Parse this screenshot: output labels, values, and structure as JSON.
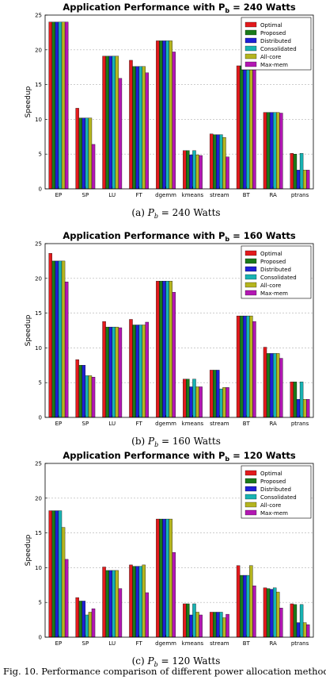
{
  "chart_data": [
    {
      "type": "bar",
      "title": "Application Performance with P",
      "title_subscript": "b",
      "title_suffix": " = 240 Watts",
      "ylabel": "Speedup",
      "xlabel": "",
      "ylim": [
        0,
        25
      ],
      "yticks": [
        "0",
        "5",
        "10",
        "15",
        "20",
        "25"
      ],
      "grid": true,
      "legend_position": "top-right",
      "categories": [
        "EP",
        "SP",
        "LU",
        "FT",
        "dgemm",
        "kmeans",
        "stream",
        "BT",
        "RA",
        "ptrans"
      ],
      "series": [
        {
          "name": "Optimal",
          "color": "#e31a1c",
          "values": [
            24.0,
            11.6,
            19.1,
            18.5,
            21.3,
            5.5,
            7.9,
            17.7,
            11.0,
            5.1
          ]
        },
        {
          "name": "Proposed",
          "color": "#1a7a1a",
          "values": [
            24.0,
            10.2,
            19.1,
            17.6,
            21.3,
            5.5,
            7.8,
            17.7,
            11.0,
            5.0
          ]
        },
        {
          "name": "Distributed",
          "color": "#1f1fd6",
          "values": [
            24.0,
            10.2,
            19.1,
            17.6,
            21.3,
            4.9,
            7.8,
            17.7,
            11.0,
            2.7
          ]
        },
        {
          "name": "Consolidated",
          "color": "#17b3b3",
          "values": [
            24.0,
            10.2,
            19.1,
            17.6,
            21.3,
            5.5,
            7.8,
            17.7,
            11.0,
            5.1
          ]
        },
        {
          "name": "All-core",
          "color": "#b5b51f",
          "values": [
            24.0,
            10.2,
            19.1,
            17.6,
            21.3,
            4.9,
            7.4,
            17.7,
            11.0,
            2.7
          ]
        },
        {
          "name": "Max-mem",
          "color": "#b317b3",
          "values": [
            24.0,
            6.4,
            15.9,
            16.7,
            19.7,
            4.8,
            4.6,
            17.5,
            10.9,
            2.7
          ]
        }
      ],
      "caption_prefix": "(a)",
      "caption_var": "P",
      "caption_sub": "b",
      "caption_rest": " = 240 Watts"
    },
    {
      "type": "bar",
      "title": "Application Performance with P",
      "title_subscript": "b",
      "title_suffix": " = 160 Watts",
      "ylabel": "Speedup",
      "xlabel": "",
      "ylim": [
        0,
        25
      ],
      "yticks": [
        "0",
        "5",
        "10",
        "15",
        "20",
        "25"
      ],
      "grid": true,
      "legend_position": "top-right",
      "categories": [
        "EP",
        "SP",
        "LU",
        "FT",
        "dgemm",
        "kmeans",
        "stream",
        "BT",
        "RA",
        "ptrans"
      ],
      "series": [
        {
          "name": "Optimal",
          "color": "#e31a1c",
          "values": [
            23.6,
            8.3,
            13.8,
            14.1,
            19.6,
            5.5,
            6.8,
            14.6,
            10.1,
            5.1
          ]
        },
        {
          "name": "Proposed",
          "color": "#1a7a1a",
          "values": [
            22.5,
            7.5,
            13.0,
            13.3,
            19.6,
            5.5,
            6.8,
            14.6,
            9.2,
            5.1
          ]
        },
        {
          "name": "Distributed",
          "color": "#1f1fd6",
          "values": [
            22.5,
            7.5,
            13.0,
            13.3,
            19.6,
            4.4,
            6.8,
            14.6,
            9.2,
            2.6
          ]
        },
        {
          "name": "Consolidated",
          "color": "#17b3b3",
          "values": [
            22.5,
            6.0,
            13.0,
            13.3,
            19.6,
            5.5,
            4.1,
            14.6,
            9.2,
            5.1
          ]
        },
        {
          "name": "All-core",
          "color": "#b5b51f",
          "values": [
            22.5,
            6.0,
            13.0,
            13.3,
            19.6,
            4.4,
            4.3,
            14.6,
            9.2,
            2.6
          ]
        },
        {
          "name": "Max-mem",
          "color": "#b317b3",
          "values": [
            19.5,
            5.8,
            12.9,
            13.7,
            18.0,
            4.4,
            4.3,
            13.8,
            8.5,
            2.6
          ]
        }
      ],
      "caption_prefix": "(b)",
      "caption_var": "P",
      "caption_sub": "b",
      "caption_rest": " = 160 Watts"
    },
    {
      "type": "bar",
      "title": "Application Performance with P",
      "title_subscript": "b",
      "title_suffix": " = 120 Watts",
      "ylabel": "Speedup",
      "xlabel": "",
      "ylim": [
        0,
        25
      ],
      "yticks": [
        "0",
        "5",
        "10",
        "15",
        "20",
        "25"
      ],
      "grid": true,
      "legend_position": "top-right",
      "categories": [
        "EP",
        "SP",
        "LU",
        "FT",
        "dgemm",
        "kmeans",
        "stream",
        "BT",
        "RA",
        "ptrans"
      ],
      "series": [
        {
          "name": "Optimal",
          "color": "#e31a1c",
          "values": [
            18.2,
            5.7,
            10.1,
            10.4,
            17.0,
            4.8,
            3.6,
            10.3,
            7.1,
            4.8
          ]
        },
        {
          "name": "Proposed",
          "color": "#1a7a1a",
          "values": [
            18.2,
            5.2,
            9.6,
            10.2,
            17.0,
            4.8,
            3.6,
            8.9,
            7.0,
            4.7
          ]
        },
        {
          "name": "Distributed",
          "color": "#1f1fd6",
          "values": [
            18.2,
            5.2,
            9.6,
            10.2,
            17.0,
            3.2,
            3.6,
            8.9,
            6.9,
            2.1
          ]
        },
        {
          "name": "Consolidated",
          "color": "#17b3b3",
          "values": [
            18.2,
            3.2,
            9.6,
            10.2,
            17.0,
            4.8,
            3.6,
            8.9,
            7.1,
            4.7
          ]
        },
        {
          "name": "All-core",
          "color": "#b5b51f",
          "values": [
            15.8,
            3.6,
            9.6,
            10.4,
            17.0,
            3.6,
            2.8,
            10.3,
            6.5,
            2.1
          ]
        },
        {
          "name": "Max-mem",
          "color": "#b317b3",
          "values": [
            11.2,
            4.1,
            7.0,
            6.4,
            12.2,
            3.2,
            3.3,
            7.4,
            4.2,
            1.8
          ]
        }
      ],
      "caption_prefix": "(c)",
      "caption_var": "P",
      "caption_sub": "b",
      "caption_rest": " = 120 Watts"
    }
  ],
  "figure_caption": "Fig. 10.  Performance comparison of different power allocation methods."
}
